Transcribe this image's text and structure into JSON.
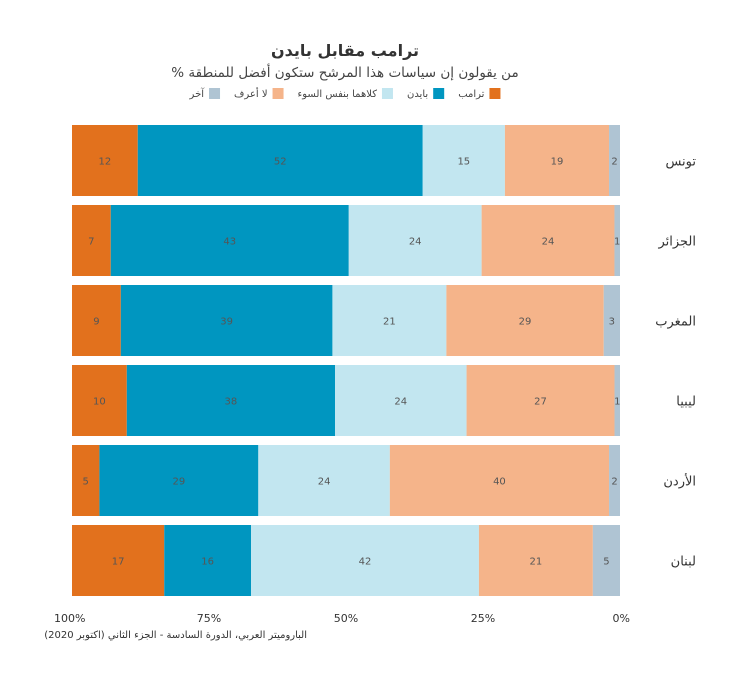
{
  "chart_data": {
    "type": "bar",
    "orientation": "horizontal-stacked",
    "title": "ترامب مقابل بايدن",
    "subtitle": "% من يقولون إن سياسات هذا المرشح ستكون أفضل للمنطقة",
    "categories": [
      "تونس",
      "الجزائر",
      "المغرب",
      "ليبيا",
      "الأردن",
      "لبنان"
    ],
    "series": [
      {
        "name": "ترامب",
        "color": "#E2711D",
        "values": [
          12,
          7,
          9,
          10,
          5,
          17
        ]
      },
      {
        "name": "بايدن",
        "color": "#0096C0",
        "values": [
          52,
          43,
          39,
          38,
          29,
          16
        ]
      },
      {
        "name": "كلاهما بنفس السوء",
        "color": "#C2E6F0",
        "values": [
          15,
          24,
          21,
          24,
          24,
          42
        ]
      },
      {
        "name": "لا أعرف",
        "color": "#F5B48A",
        "values": [
          19,
          24,
          29,
          27,
          40,
          21
        ]
      },
      {
        "name": "آخر",
        "color": "#AFC4D3",
        "values": [
          2,
          1,
          3,
          1,
          2,
          5
        ]
      }
    ],
    "x_ticks": [
      "100%",
      "75%",
      "50%",
      "25%",
      "0%"
    ],
    "xlim": [
      100,
      0
    ],
    "grid": false,
    "legend_position": "top"
  },
  "source": "الباروميتر العربي، الدورة السادسة - الجزء الثاني (اكتوبر 2020)"
}
